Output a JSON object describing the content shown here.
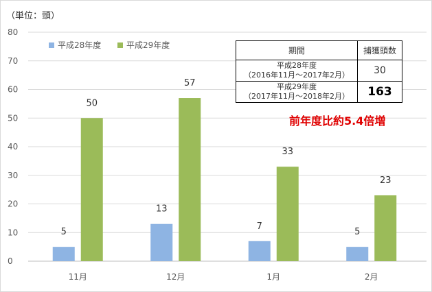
{
  "chart_data": {
    "type": "bar",
    "unit_label": "（単位：頭）",
    "categories": [
      "11月",
      "12月",
      "1月",
      "2月"
    ],
    "series": [
      {
        "name": "平成28年度",
        "color": "#8eb4e3",
        "values": [
          5,
          13,
          7,
          5
        ]
      },
      {
        "name": "平成29年度",
        "color": "#9bbb59",
        "values": [
          50,
          57,
          33,
          23
        ]
      }
    ],
    "ylim": [
      0,
      80
    ],
    "yticks": [
      0,
      10,
      20,
      30,
      40,
      50,
      60,
      70,
      80
    ],
    "grid": true,
    "legend": "top-left"
  },
  "table": {
    "headers": [
      "期間",
      "捕獲頭数"
    ],
    "rows": [
      {
        "period_line1": "平成28年度",
        "period_line2": "（2016年11月～2017年2月）",
        "count": "30"
      },
      {
        "period_line1": "平成29年度",
        "period_line2": "（2017年11月～2018年2月）",
        "count": "163"
      }
    ]
  },
  "note": "前年度比約5.4倍増"
}
